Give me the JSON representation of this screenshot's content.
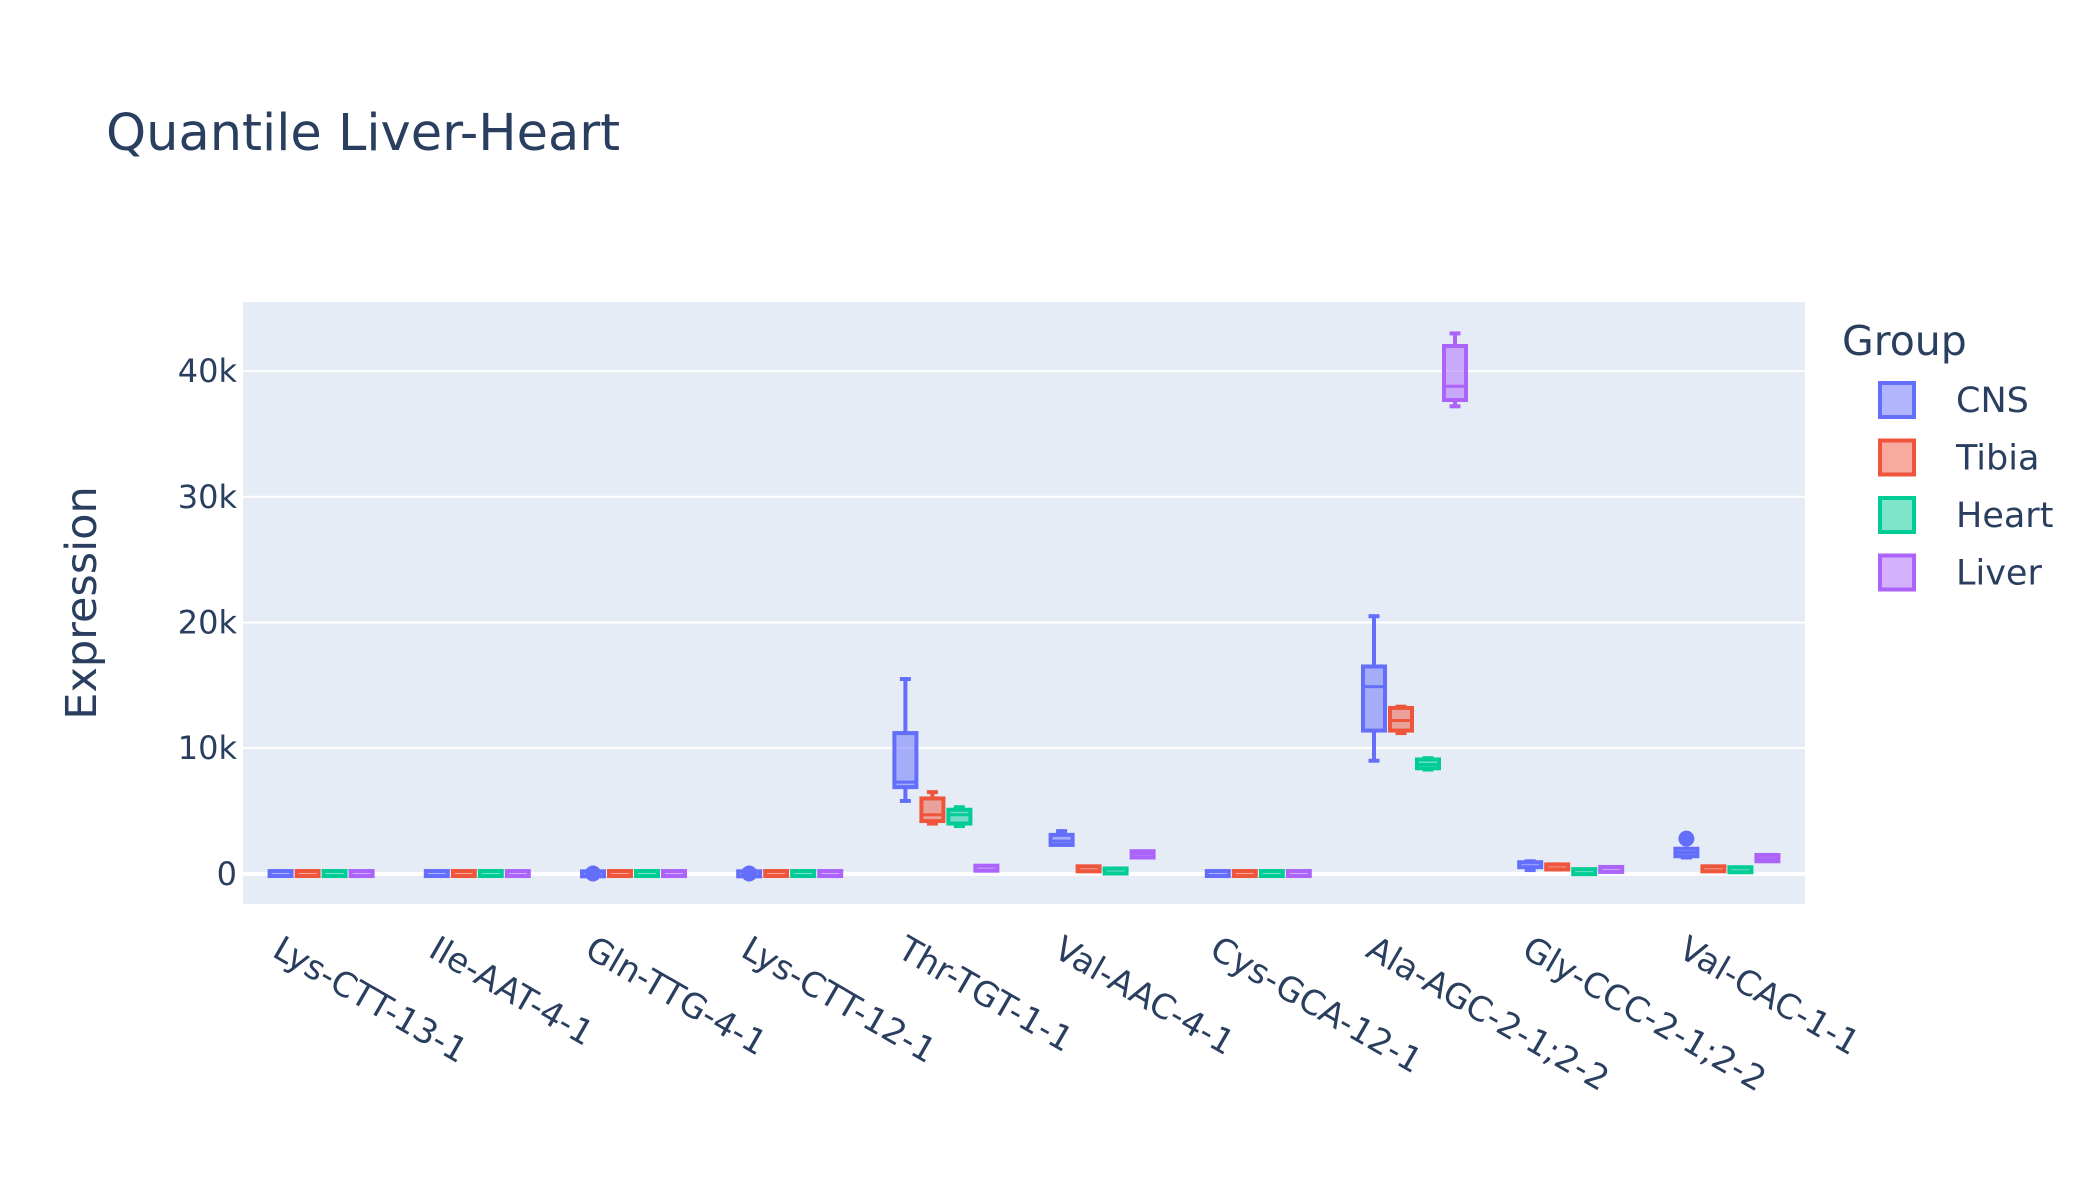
{
  "chart_data": {
    "type": "box",
    "title": "Quantile Liver-Heart",
    "xlabel": "",
    "ylabel": "Expression",
    "ylim": [
      -2400,
      45500
    ],
    "yticks": [
      0,
      10000,
      20000,
      30000,
      40000
    ],
    "ytick_labels": [
      "0",
      "10k",
      "20k",
      "30k",
      "40k"
    ],
    "grid": true,
    "legend_title": "Group",
    "legend_position": "right",
    "categories": [
      "Lys-CTT-13-1",
      "Ile-AAT-4-1",
      "Gln-TTG-4-1",
      "Lys-CTT-12-1",
      "Thr-TGT-1-1",
      "Val-AAC-4-1",
      "Cys-GCA-12-1",
      "Ala-AGC-2-1;2-2",
      "Gly-CCC-2-1;2-2",
      "Val-CAC-1-1"
    ],
    "series": [
      {
        "name": "CNS",
        "color": "#636efa",
        "boxes": [
          {
            "min": 0,
            "q1": 0,
            "median": 0,
            "q3": 50,
            "max": 50
          },
          {
            "min": 0,
            "q1": 0,
            "median": 0,
            "q3": 50,
            "max": 50
          },
          {
            "min": 0,
            "q1": 0,
            "median": 0,
            "q3": 0,
            "max": 0,
            "outliers": [
              30
            ]
          },
          {
            "min": 0,
            "q1": 0,
            "median": 0,
            "q3": 0,
            "max": 0,
            "outliers": [
              30
            ]
          },
          {
            "min": 5800,
            "q1": 6900,
            "median": 7300,
            "q3": 11200,
            "max": 15500
          },
          {
            "min": 2300,
            "q1": 2300,
            "median": 2600,
            "q3": 3100,
            "max": 3400
          },
          {
            "min": 0,
            "q1": 0,
            "median": 0,
            "q3": 50,
            "max": 50
          },
          {
            "min": 9000,
            "q1": 11400,
            "median": 14900,
            "q3": 16500,
            "max": 20500
          },
          {
            "min": 300,
            "q1": 550,
            "median": 750,
            "q3": 900,
            "max": 1000
          },
          {
            "min": 1300,
            "q1": 1400,
            "median": 1700,
            "q3": 2000,
            "max": 2000,
            "outliers": [
              2800
            ]
          }
        ]
      },
      {
        "name": "Tibia",
        "color": "#ef553b",
        "boxes": [
          {
            "min": 0,
            "q1": 0,
            "median": 0,
            "q3": 50,
            "max": 50
          },
          {
            "min": 0,
            "q1": 0,
            "median": 0,
            "q3": 50,
            "max": 50
          },
          {
            "min": 0,
            "q1": 0,
            "median": 0,
            "q3": 50,
            "max": 50
          },
          {
            "min": 0,
            "q1": 0,
            "median": 0,
            "q3": 50,
            "max": 50
          },
          {
            "min": 4000,
            "q1": 4200,
            "median": 4700,
            "q3": 6000,
            "max": 6500
          },
          {
            "min": 300,
            "q1": 300,
            "median": 350,
            "q3": 500,
            "max": 500
          },
          {
            "min": 0,
            "q1": 0,
            "median": 0,
            "q3": 50,
            "max": 50
          },
          {
            "min": 11200,
            "q1": 11400,
            "median": 12200,
            "q3": 13200,
            "max": 13300
          },
          {
            "min": 350,
            "q1": 400,
            "median": 550,
            "q3": 700,
            "max": 750
          },
          {
            "min": 300,
            "q1": 300,
            "median": 350,
            "q3": 500,
            "max": 500
          }
        ]
      },
      {
        "name": "Heart",
        "color": "#00cc96",
        "boxes": [
          {
            "min": 0,
            "q1": 0,
            "median": 0,
            "q3": 50,
            "max": 50
          },
          {
            "min": 0,
            "q1": 0,
            "median": 0,
            "q3": 50,
            "max": 50
          },
          {
            "min": 0,
            "q1": 0,
            "median": 0,
            "q3": 50,
            "max": 50
          },
          {
            "min": 0,
            "q1": 0,
            "median": 0,
            "q3": 50,
            "max": 50
          },
          {
            "min": 3800,
            "q1": 4000,
            "median": 4700,
            "q3": 5100,
            "max": 5300
          },
          {
            "min": 150,
            "q1": 150,
            "median": 200,
            "q3": 300,
            "max": 300
          },
          {
            "min": 0,
            "q1": 0,
            "median": 0,
            "q3": 50,
            "max": 50
          },
          {
            "min": 8300,
            "q1": 8400,
            "median": 8700,
            "q3": 9100,
            "max": 9200
          },
          {
            "min": 100,
            "q1": 100,
            "median": 150,
            "q3": 250,
            "max": 250
          },
          {
            "min": 250,
            "q1": 250,
            "median": 300,
            "q3": 400,
            "max": 400
          }
        ]
      },
      {
        "name": "Liver",
        "color": "#ab63fa",
        "boxes": [
          {
            "min": 0,
            "q1": 0,
            "median": 0,
            "q3": 50,
            "max": 50
          },
          {
            "min": 0,
            "q1": 0,
            "median": 0,
            "q3": 50,
            "max": 50
          },
          {
            "min": 0,
            "q1": 0,
            "median": 0,
            "q3": 50,
            "max": 50
          },
          {
            "min": 0,
            "q1": 0,
            "median": 0,
            "q3": 50,
            "max": 50
          },
          {
            "min": 350,
            "q1": 350,
            "median": 400,
            "q3": 550,
            "max": 550
          },
          {
            "min": 1300,
            "q1": 1300,
            "median": 1600,
            "q3": 1800,
            "max": 1800
          },
          {
            "min": 0,
            "q1": 0,
            "median": 0,
            "q3": 50,
            "max": 50
          },
          {
            "min": 37200,
            "q1": 37700,
            "median": 38800,
            "q3": 42000,
            "max": 43000
          },
          {
            "min": 200,
            "q1": 200,
            "median": 350,
            "q3": 500,
            "max": 500
          },
          {
            "min": 1000,
            "q1": 1000,
            "median": 1200,
            "q3": 1500,
            "max": 1500
          }
        ]
      }
    ]
  }
}
